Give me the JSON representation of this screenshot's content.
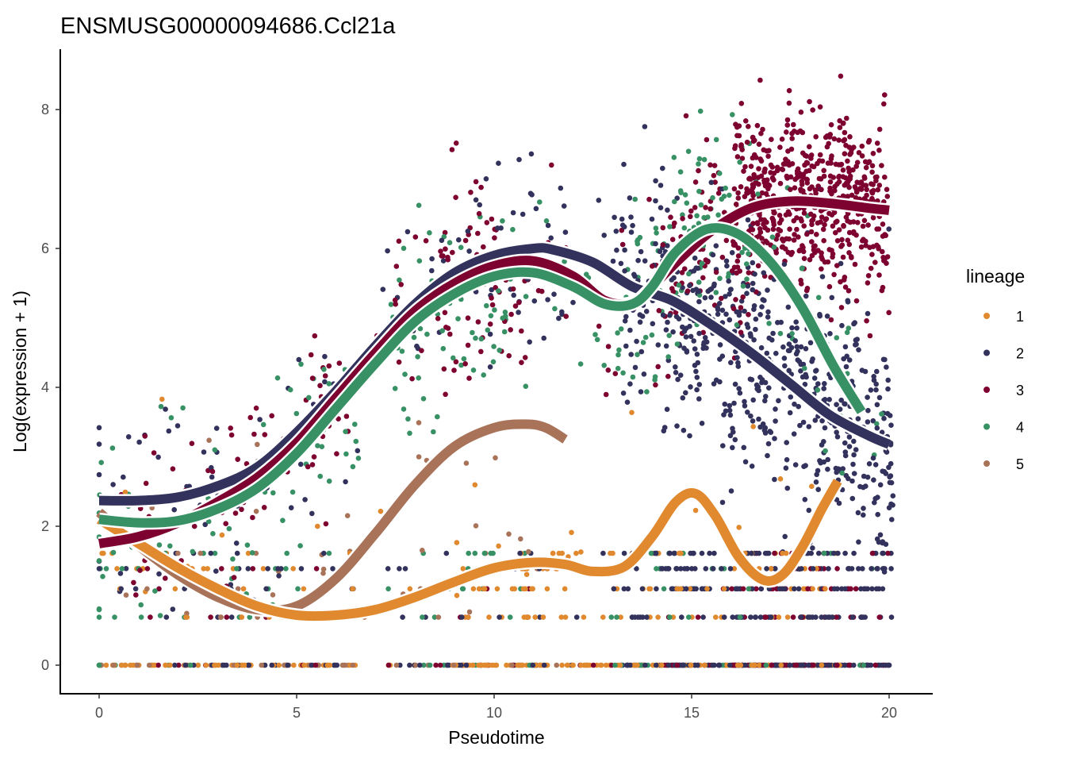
{
  "chart_data": {
    "type": "scatter",
    "title": "ENSMUSG00000094686.Ccl21a",
    "xlabel": "Pseudotime",
    "ylabel": "Log(expression + 1)",
    "xlim": [
      -0.9,
      21.0
    ],
    "ylim": [
      -0.4,
      8.9
    ],
    "xticks": [
      0,
      5,
      10,
      15,
      20
    ],
    "yticks": [
      0,
      2,
      4,
      6,
      8
    ],
    "grid": false,
    "legend": {
      "title": "lineage",
      "position": "right"
    },
    "series": [
      {
        "name": "1",
        "color": "#E0892F",
        "point_range": [
          0,
          18.8
        ],
        "smooth_curve": {
          "x": [
            0,
            1,
            2,
            3,
            4,
            5,
            6,
            7,
            8,
            9,
            10,
            11,
            11.8,
            12.5,
            13.3,
            14,
            14.6,
            15.1,
            15.6,
            16.2,
            16.8,
            17.3,
            17.8,
            18.3,
            18.7
          ],
          "y": [
            2.1,
            1.75,
            1.4,
            1.1,
            0.85,
            0.72,
            0.72,
            0.8,
            0.98,
            1.2,
            1.4,
            1.48,
            1.45,
            1.35,
            1.42,
            1.85,
            2.35,
            2.47,
            2.15,
            1.55,
            1.23,
            1.3,
            1.7,
            2.25,
            2.65
          ]
        }
      },
      {
        "name": "2",
        "color": "#32325D",
        "point_range": [
          0,
          20.1
        ],
        "smooth_curve": {
          "x": [
            0,
            1,
            2,
            3,
            4,
            5,
            6,
            7,
            8,
            9,
            10,
            11,
            11.5,
            12.5,
            13.5,
            14.5,
            15.5,
            16.5,
            17.5,
            18.5,
            19.5,
            20.0
          ],
          "y": [
            2.37,
            2.37,
            2.42,
            2.58,
            2.85,
            3.35,
            3.95,
            4.6,
            5.2,
            5.65,
            5.9,
            6.0,
            5.98,
            5.8,
            5.45,
            5.25,
            4.9,
            4.5,
            4.05,
            3.6,
            3.3,
            3.18
          ]
        }
      },
      {
        "name": "3",
        "color": "#7D0230",
        "point_range": [
          0,
          20.0
        ],
        "smooth_curve": {
          "x": [
            0,
            1,
            2,
            3,
            4,
            5,
            6,
            7,
            8,
            9,
            10,
            11,
            12,
            12.8,
            13.5,
            14,
            14.7,
            15.5,
            16.5,
            17.5,
            18.5,
            19.5,
            20.0
          ],
          "y": [
            1.75,
            1.85,
            2.05,
            2.35,
            2.7,
            3.2,
            3.85,
            4.5,
            5.1,
            5.5,
            5.75,
            5.82,
            5.6,
            5.25,
            5.22,
            5.45,
            5.85,
            6.25,
            6.58,
            6.68,
            6.65,
            6.58,
            6.55
          ]
        }
      },
      {
        "name": "4",
        "color": "#379164",
        "point_range": [
          0,
          20.0
        ],
        "smooth_curve": {
          "x": [
            0,
            1,
            2,
            3,
            4,
            5,
            6,
            7,
            8,
            9,
            10,
            11,
            12,
            12.8,
            13.5,
            14,
            14.6,
            15.4,
            16.2,
            17,
            17.8,
            18.6,
            19.3
          ],
          "y": [
            2.1,
            2.05,
            2.08,
            2.25,
            2.55,
            3.05,
            3.7,
            4.35,
            4.95,
            5.35,
            5.6,
            5.65,
            5.45,
            5.2,
            5.2,
            5.45,
            5.95,
            6.28,
            6.2,
            5.8,
            5.15,
            4.3,
            3.65
          ]
        }
      },
      {
        "name": "5",
        "color": "#A87359",
        "point_range": [
          0,
          11.8
        ],
        "smooth_curve": {
          "x": [
            0,
            1,
            2,
            3,
            4,
            5,
            6,
            7,
            8,
            9,
            10,
            10.8,
            11.3,
            11.8
          ],
          "y": [
            2.2,
            1.72,
            1.3,
            0.98,
            0.8,
            0.85,
            1.25,
            1.9,
            2.6,
            3.15,
            3.42,
            3.47,
            3.42,
            3.25
          ]
        }
      }
    ],
    "observed_levels": [
      0,
      0.69,
      1.1,
      1.39,
      1.61,
      1.79,
      1.95
    ]
  }
}
